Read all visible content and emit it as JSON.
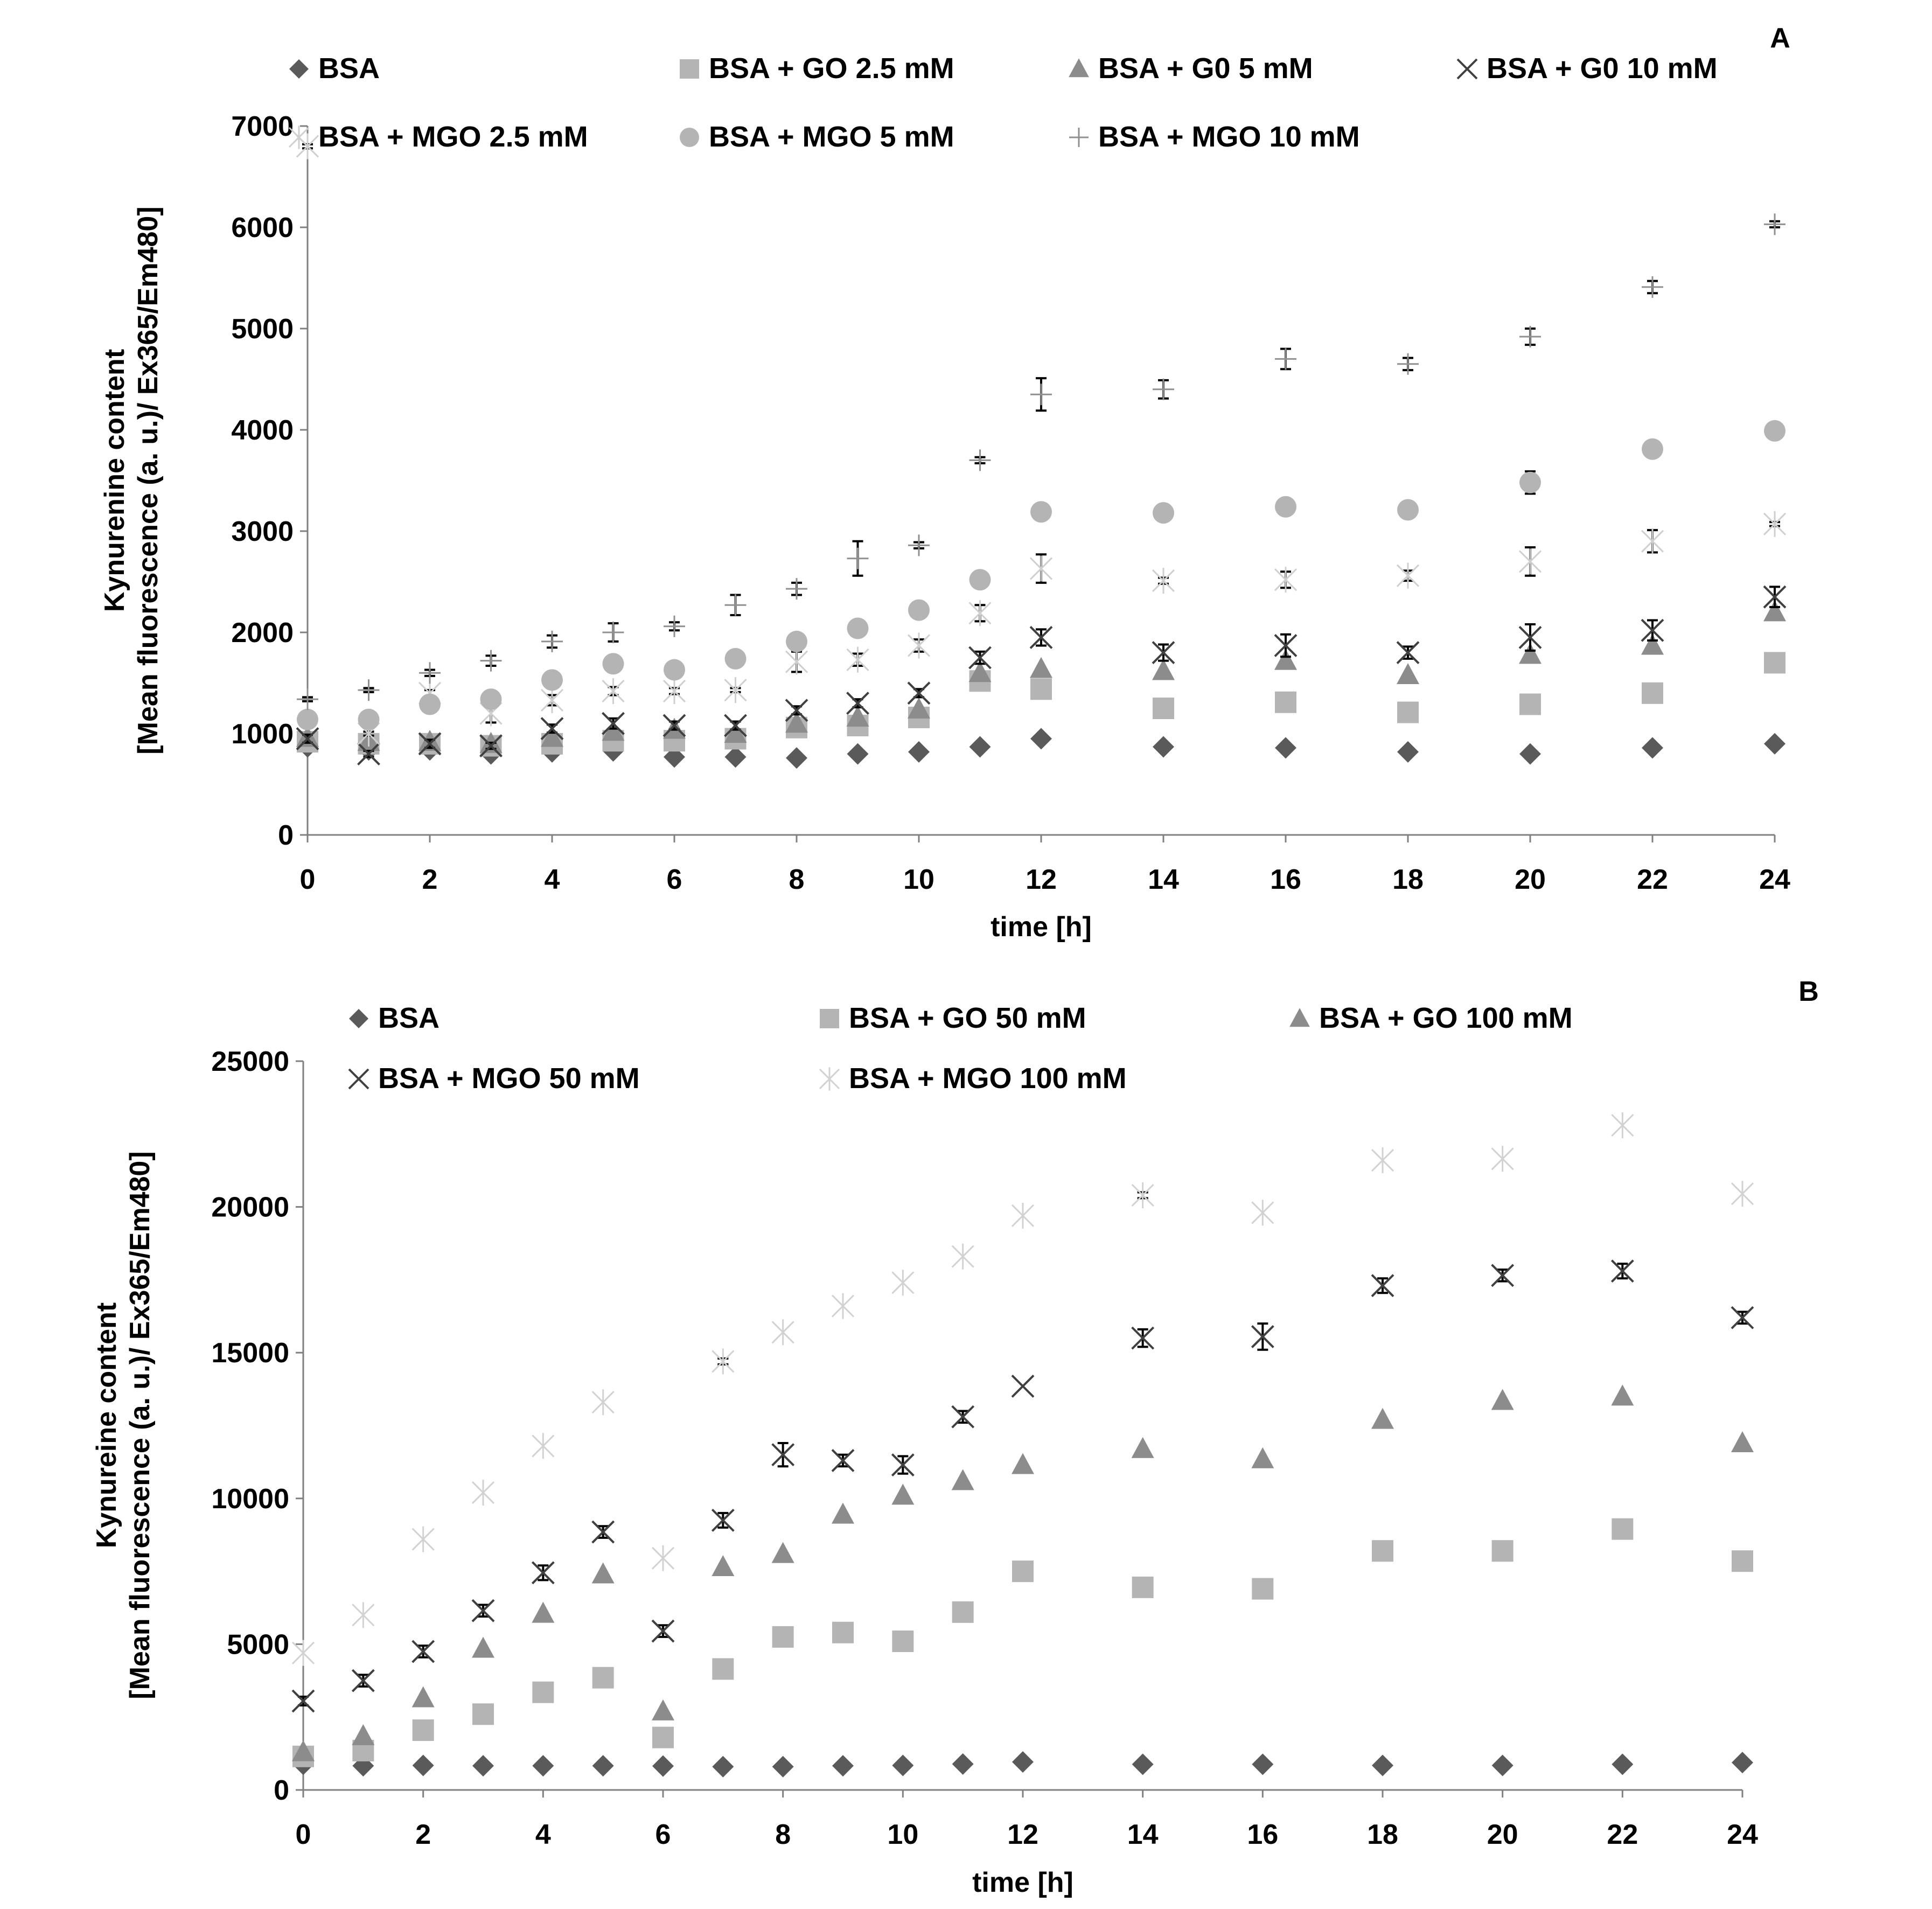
{
  "chart_data": [
    {
      "panel_label": "A",
      "type": "scatter",
      "xlabel": "time [h]",
      "ylabel_lines": [
        "Kynurenine content",
        "[Mean fluorescence (a. u.)/ Ex365/Em480]"
      ],
      "xlim": [
        0,
        24
      ],
      "ylim": [
        0,
        7000
      ],
      "xticks": [
        0,
        2,
        4,
        6,
        8,
        10,
        12,
        14,
        16,
        18,
        20,
        22,
        24
      ],
      "yticks": [
        0,
        1000,
        2000,
        3000,
        4000,
        5000,
        6000,
        7000
      ],
      "grid": false,
      "legend_position": "top",
      "x": [
        0,
        1,
        2,
        3,
        4,
        5,
        6,
        7,
        8,
        9,
        10,
        11,
        12,
        14,
        16,
        18,
        20,
        22,
        24
      ],
      "series": [
        {
          "name": "BSA",
          "marker": "diamond",
          "color": "#5a5a5a",
          "values": [
            870,
            840,
            840,
            800,
            820,
            830,
            770,
            770,
            760,
            800,
            820,
            870,
            950,
            870,
            860,
            820,
            800,
            860,
            900
          ],
          "error": []
        },
        {
          "name": "BSA + GO 2.5 mM",
          "marker": "square",
          "color": "#b4b4b4",
          "values": [
            920,
            900,
            900,
            880,
            900,
            930,
            930,
            950,
            1060,
            1080,
            1160,
            1520,
            1440,
            1250,
            1310,
            1210,
            1290,
            1400,
            1700
          ],
          "error": []
        },
        {
          "name": "BSA + G0 5 mM",
          "marker": "triangle",
          "color": "#8c8c8c",
          "values": [
            960,
            920,
            920,
            900,
            960,
            1020,
            1040,
            1000,
            1100,
            1160,
            1240,
            1600,
            1640,
            1620,
            1720,
            1580,
            1780,
            1870,
            2200
          ],
          "error": []
        },
        {
          "name": "BSA + G0 10 mM",
          "marker": "x",
          "color": "#404040",
          "values": [
            950,
            800,
            900,
            880,
            1050,
            1100,
            1080,
            1080,
            1230,
            1300,
            1400,
            1750,
            1950,
            1800,
            1870,
            1800,
            1950,
            2020,
            2350
          ],
          "error": [
            40,
            30,
            40,
            30,
            40,
            50,
            40,
            40,
            40,
            40,
            40,
            60,
            80,
            80,
            110,
            60,
            130,
            100,
            100
          ]
        },
        {
          "name": "BSA + MGO 2.5 mM",
          "marker": "asterisk",
          "color": "#cfcfcf",
          "values": [
            6800,
            1000,
            1400,
            1200,
            1330,
            1420,
            1420,
            1430,
            1710,
            1730,
            1870,
            2190,
            2630,
            2510,
            2520,
            2560,
            2700,
            2900,
            3070
          ],
          "error": [
            20,
            20,
            30,
            90,
            50,
            40,
            30,
            20,
            100,
            60,
            60,
            80,
            140,
            30,
            80,
            50,
            140,
            110,
            20
          ]
        },
        {
          "name": "BSA + MGO 5 mM",
          "marker": "circle",
          "color": "#b4b4b4",
          "values": [
            1140,
            1140,
            1290,
            1340,
            1530,
            1690,
            1630,
            1740,
            1910,
            2040,
            2220,
            2520,
            3190,
            3180,
            3240,
            3210,
            3480,
            3810,
            3990
          ],
          "error": [
            0,
            0,
            0,
            0,
            0,
            0,
            0,
            0,
            0,
            0,
            0,
            0,
            60,
            0,
            60,
            0,
            110,
            0,
            0
          ]
        },
        {
          "name": "BSA + MGO 10 mM",
          "marker": "plus",
          "color": "#909090",
          "values": [
            1340,
            1430,
            1600,
            1720,
            1910,
            2000,
            2060,
            2270,
            2430,
            2730,
            2860,
            3700,
            4350,
            4400,
            4700,
            4650,
            4920,
            5410,
            6030
          ],
          "error": [
            20,
            20,
            30,
            50,
            60,
            90,
            40,
            100,
            60,
            170,
            30,
            30,
            160,
            90,
            100,
            60,
            80,
            60,
            30
          ]
        }
      ]
    },
    {
      "panel_label": "B",
      "type": "scatter",
      "xlabel": "time [h]",
      "ylabel_lines": [
        "Kynureine content",
        "[Mean fluorescence (a. u.)/ Ex365/Em480]"
      ],
      "xlim": [
        0,
        24
      ],
      "ylim": [
        0,
        25000
      ],
      "xticks": [
        0,
        2,
        4,
        6,
        8,
        10,
        12,
        14,
        16,
        18,
        20,
        22,
        24
      ],
      "yticks": [
        0,
        5000,
        10000,
        15000,
        20000,
        25000
      ],
      "grid": false,
      "legend_position": "top",
      "x": [
        0,
        1,
        2,
        3,
        4,
        5,
        6,
        7,
        8,
        9,
        10,
        11,
        12,
        14,
        16,
        18,
        20,
        22,
        24
      ],
      "series": [
        {
          "name": "BSA",
          "marker": "diamond",
          "color": "#5a5a5a",
          "values": [
            880,
            830,
            840,
            830,
            830,
            830,
            820,
            800,
            800,
            830,
            840,
            890,
            960,
            880,
            880,
            840,
            840,
            880,
            940
          ],
          "error": []
        },
        {
          "name": "BSA + GO 50 mM",
          "marker": "square",
          "color": "#b4b4b4",
          "values": [
            1150,
            1350,
            2050,
            2600,
            3350,
            3850,
            1800,
            4150,
            5250,
            5400,
            5100,
            6100,
            7500,
            6950,
            6900,
            8200,
            8200,
            8950,
            7850
          ],
          "error": []
        },
        {
          "name": "BSA + GO 100 mM",
          "marker": "triangle",
          "color": "#8c8c8c",
          "values": [
            1300,
            1850,
            3150,
            4850,
            6050,
            7400,
            2700,
            7650,
            8100,
            9450,
            10100,
            10600,
            11150,
            11700,
            11350,
            12700,
            13350,
            13500,
            11900
          ],
          "error": []
        },
        {
          "name": "BSA + MGO 50 mM",
          "marker": "x",
          "color": "#404040",
          "values": [
            3050,
            3750,
            4750,
            6150,
            7450,
            8850,
            5450,
            9250,
            11500,
            11300,
            11150,
            12800,
            13850,
            15500,
            15550,
            17300,
            17650,
            17800,
            16200
          ],
          "error": [
            150,
            200,
            200,
            200,
            250,
            200,
            200,
            250,
            400,
            200,
            300,
            200,
            0,
            300,
            450,
            250,
            200,
            250,
            200
          ]
        },
        {
          "name": "BSA + MGO 100 mM",
          "marker": "asterisk",
          "color": "#d2d2d2",
          "values": [
            4700,
            6000,
            8600,
            10200,
            11800,
            13300,
            7950,
            14700,
            15700,
            16600,
            17400,
            18300,
            19700,
            20400,
            19800,
            21600,
            21650,
            22800,
            20450
          ],
          "error": [
            0,
            0,
            0,
            0,
            0,
            0,
            0,
            100,
            0,
            0,
            0,
            0,
            0,
            100,
            0,
            0,
            0,
            0,
            0
          ]
        }
      ]
    }
  ]
}
